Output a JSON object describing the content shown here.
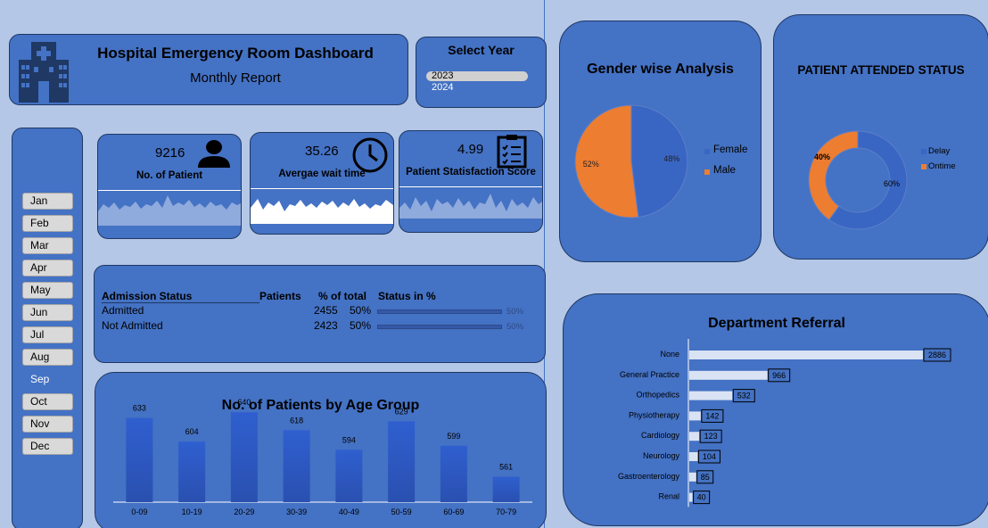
{
  "header": {
    "title": "Hospital Emergency Room Dashboard",
    "subtitle": "Monthly Report"
  },
  "year_filter": {
    "title": "Select Year",
    "options": [
      "2023",
      "2024"
    ],
    "selected": "2023"
  },
  "months": {
    "items": [
      "Jan",
      "Feb",
      "Mar",
      "Apr",
      "May",
      "Jun",
      "Jul",
      "Aug",
      "Sep",
      "Oct",
      "Nov",
      "Dec"
    ],
    "selected": "Sep"
  },
  "kpis": {
    "patients": {
      "value": "9216",
      "label": "No. of Patient",
      "icon": "user-icon"
    },
    "wait": {
      "value": "35.26",
      "label": "Avergae wait time",
      "icon": "clock-icon"
    },
    "satisfaction": {
      "value": "4.99",
      "label": "Patient Statisfaction Score",
      "icon": "checklist-icon"
    }
  },
  "admission": {
    "headers": [
      "Admission Status",
      "Patients",
      "% of total",
      "Status in %"
    ],
    "rows": [
      {
        "status": "Admitted",
        "patients": "2455",
        "pct": "50%",
        "bar_pct": "50%",
        "fill": 0.5
      },
      {
        "status": "Not Admitted",
        "patients": "2423",
        "pct": "50%",
        "bar_pct": "50%",
        "fill": 0.5
      }
    ]
  },
  "colors": {
    "background": "#b4c7e7",
    "card": "#4472c4",
    "female": "#3a66c3",
    "male": "#ed7d31"
  },
  "chart_data": [
    {
      "type": "bar",
      "title": "No. of Patients by Age Group",
      "categories": [
        "0-09",
        "10-19",
        "20-29",
        "30-39",
        "40-49",
        "50-59",
        "60-69",
        "70-79"
      ],
      "values": [
        633,
        604,
        640,
        618,
        594,
        629,
        599,
        561
      ],
      "ylim": [
        530,
        650
      ]
    },
    {
      "type": "pie",
      "title": "Gender wise Analysis",
      "categories": [
        "Female",
        "Male"
      ],
      "values": [
        48,
        52
      ],
      "labels": [
        "48%",
        "52%"
      ],
      "legend": "right"
    },
    {
      "type": "pie",
      "title": "PATIENT ATTENDED STATUS",
      "categories": [
        "Delay",
        "Ontime"
      ],
      "values": [
        60,
        40
      ],
      "labels": [
        "60%",
        "40%"
      ],
      "legend": "right"
    },
    {
      "type": "bar",
      "title": "Department Referral",
      "categories": [
        "None",
        "General Practice",
        "Orthopedics",
        "Physiotherapy",
        "Cardiology",
        "Neurology",
        "Gastroenterology",
        "Renal"
      ],
      "values": [
        2886,
        966,
        532,
        142,
        123,
        104,
        85,
        40
      ],
      "orientation": "horizontal"
    }
  ]
}
